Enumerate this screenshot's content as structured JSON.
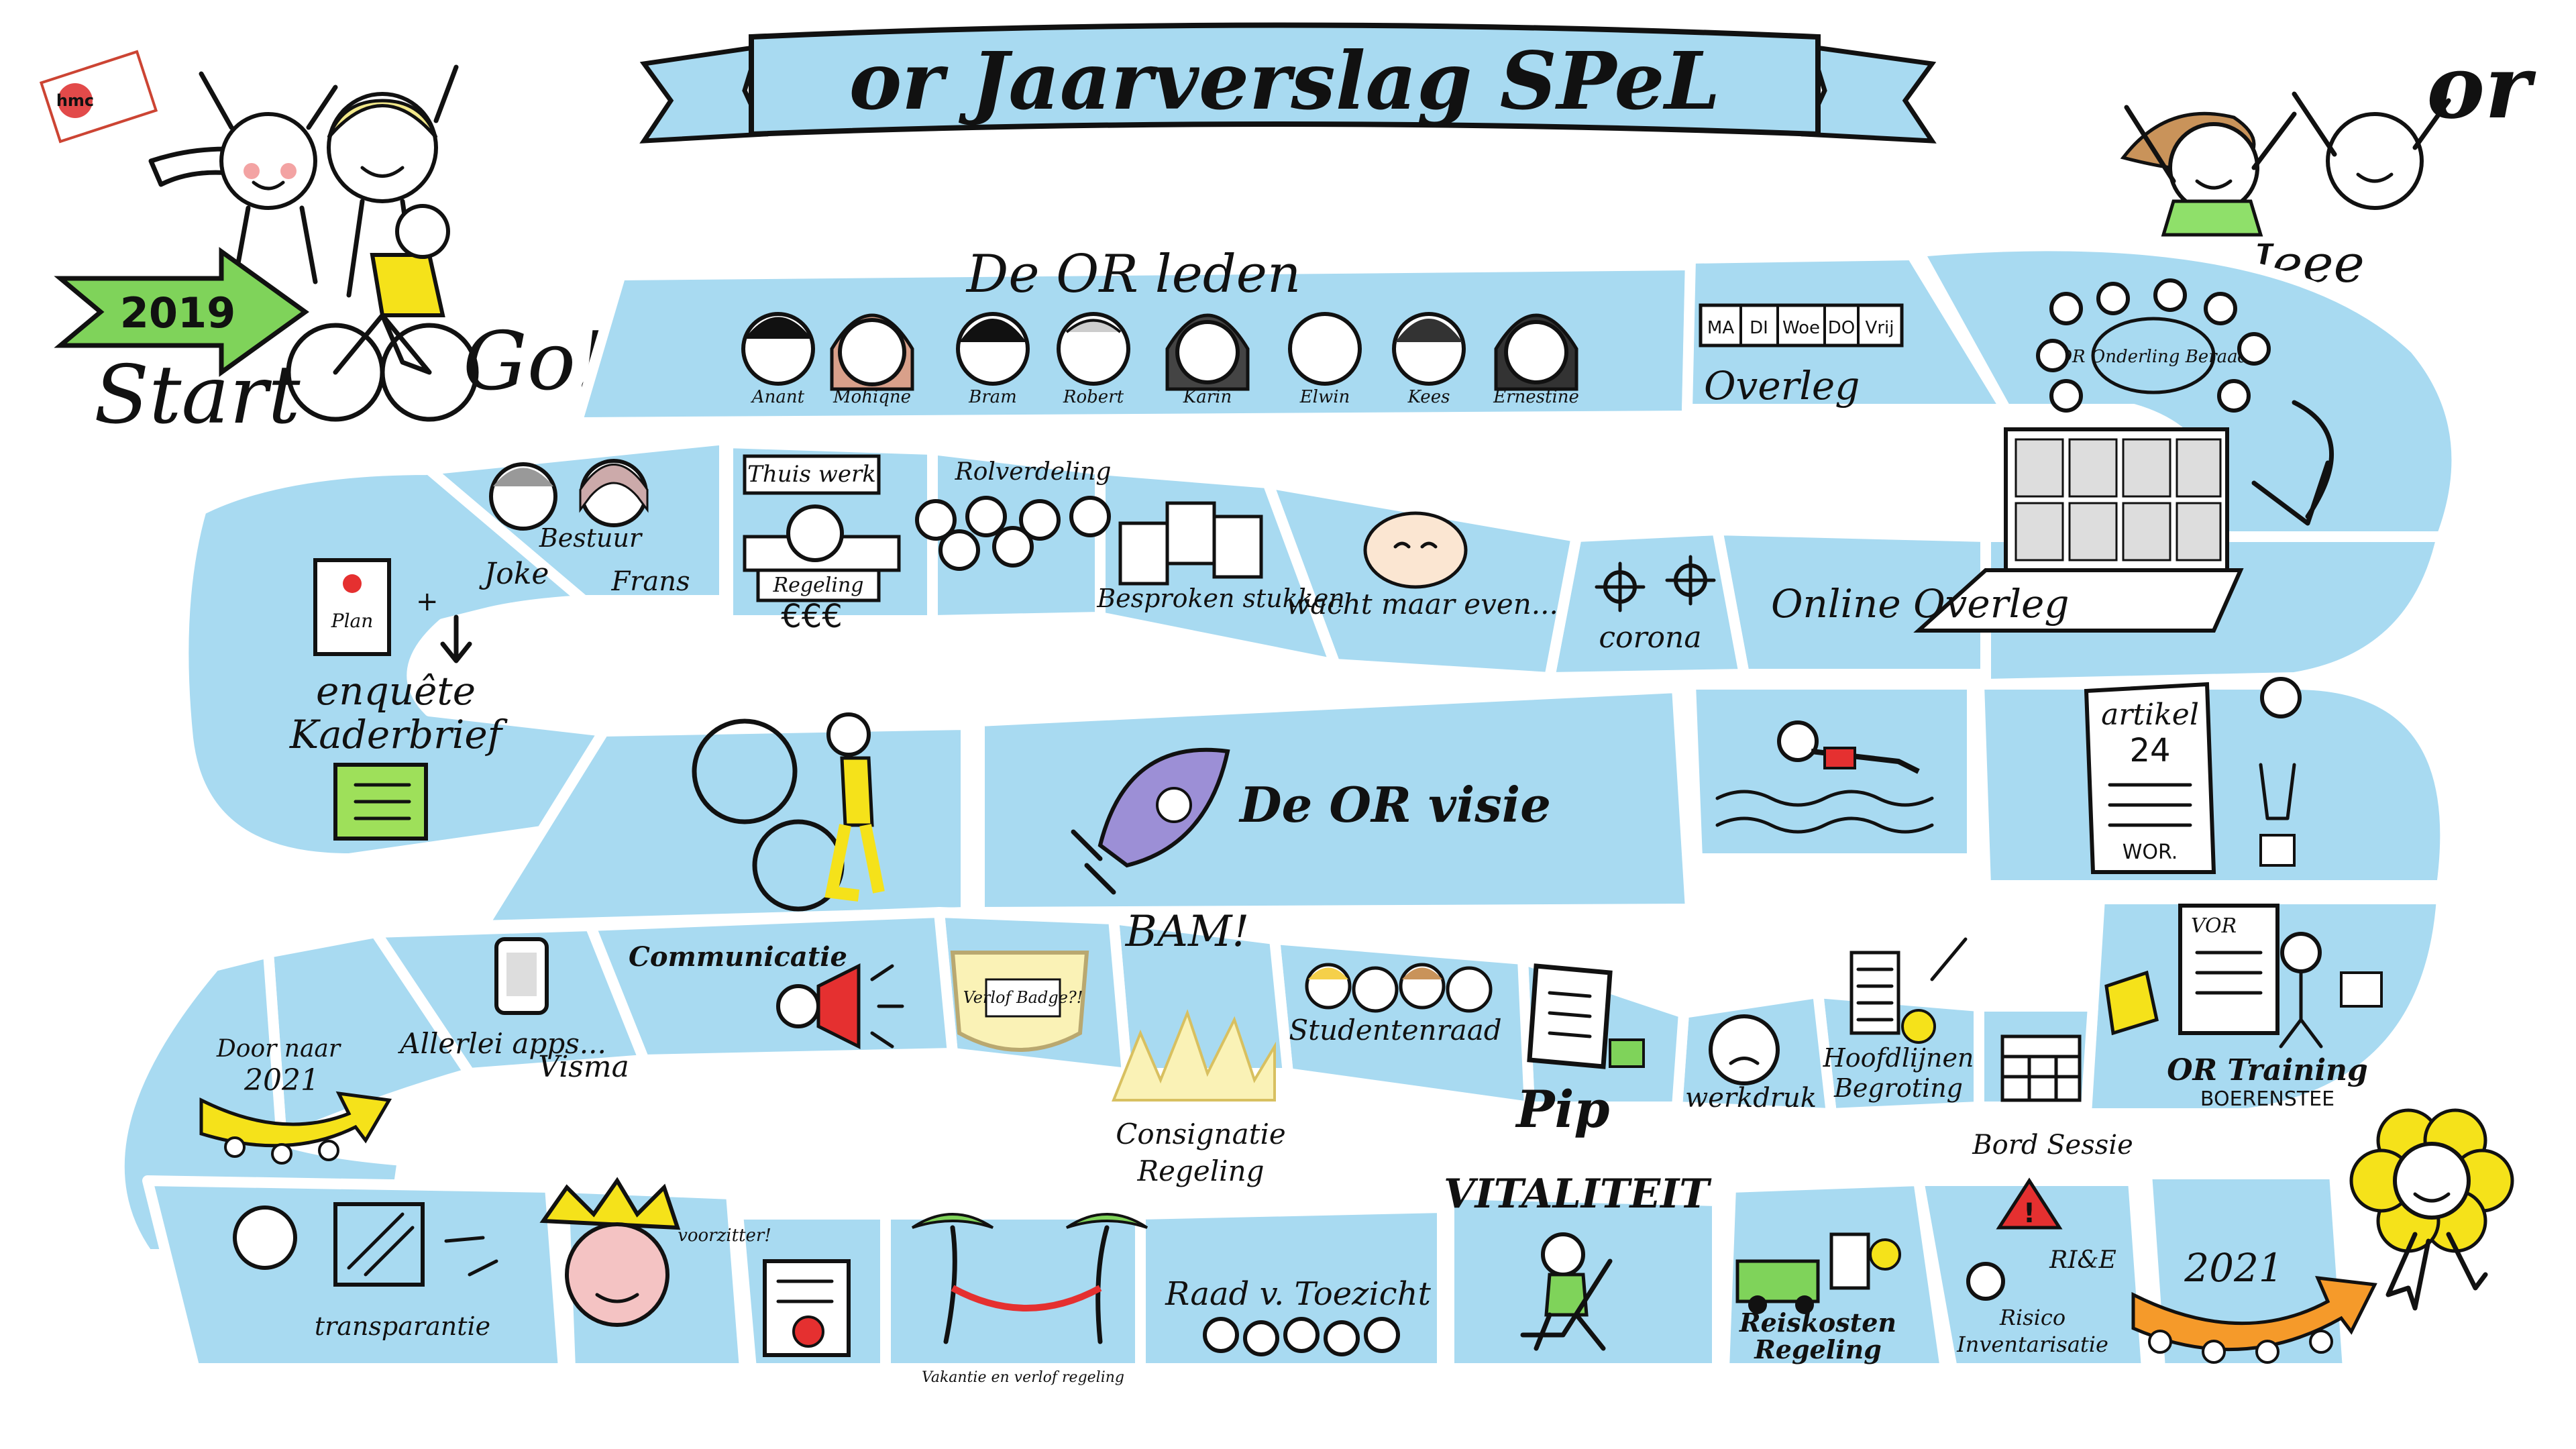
{
  "title": "or Jaarverslag SPeL",
  "logo_text": "hmc",
  "corner_label": "or",
  "cheer": "Jeee",
  "start": {
    "year": "2019",
    "start_label": "Start",
    "go_label": "Go!"
  },
  "or_leden": {
    "heading": "De OR leden",
    "members": [
      "Anant",
      "Mohiqne",
      "Bram",
      "Robert",
      "Karin",
      "Elwin",
      "Kees",
      "Ernestine"
    ]
  },
  "week_days": [
    "MA",
    "DI",
    "Woe",
    "DO",
    "Vrij"
  ],
  "tiles": {
    "overleg": "Overleg",
    "onderling_beraad": "OR Onderling Beraad",
    "bestuur": "Bestuur",
    "joke": "Joke",
    "frans": "Frans",
    "thuiswerk": "Thuis werk",
    "regeling": "Regeling",
    "euros": "€€€",
    "rolverdeling": "Rolverdeling",
    "besproken_stukken": "Besproken stukken",
    "wacht_maar_even": "wacht maar even...",
    "corona": "corona",
    "online_overleg": "Online Overleg",
    "plan": "Plan",
    "enquete_kaderbrief": "enquête Kaderbrief",
    "or_visie": "De OR visie",
    "artikel": "artikel",
    "artikel_nr": "24",
    "wor": "WOR.",
    "communicatie": "Communicatie",
    "apps": "Allerlei apps...",
    "visma": "Visma",
    "verlof_badge": "Verlof Badge?!",
    "bam": "BAM!",
    "consignatie": "Consignatie Regeling",
    "studentenraad": "Studentenraad",
    "pip": "Pip",
    "werkdruk": "werkdruk",
    "hoofdlijnen": "Hoofdlijnen Begroting",
    "bordsessie": "Bord Sessie",
    "vor": "VOR",
    "or_training": "OR Training",
    "boerensteë": "BOERENSTEE",
    "door_naar": "Door naar",
    "door_naar_year": "2021",
    "transparantie": "transparantie",
    "voorzitter": "voorzitter!",
    "vakantie": "Vakantie en verlof regeling",
    "raad_toezicht": "Raad v. Toezicht",
    "vitaliteit": "VITALITEIT",
    "reiskosten": "Reiskosten Regeling",
    "rie": "RI&E",
    "risico": "Risico Inventarisatie",
    "finish_year": "2021"
  },
  "colors": {
    "track": "#a8daf1",
    "banner": "#a8daf1",
    "start_arrow": "#7fd35a",
    "yellow": "#f5e21a",
    "orange": "#f59a2a",
    "green_doc": "#9ee05a",
    "red": "#e53030"
  }
}
